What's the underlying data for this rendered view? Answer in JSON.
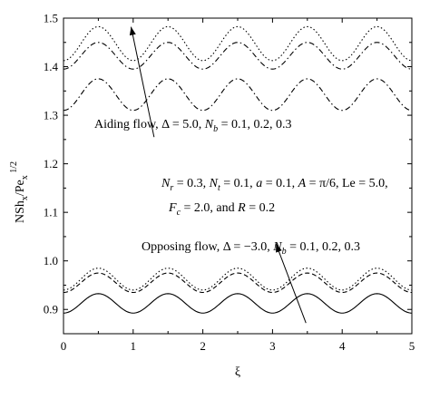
{
  "chart_data": {
    "type": "line",
    "xlabel": "ξ",
    "ylabel": "NSh_x/Pe_x^1/2",
    "xlim": [
      0,
      5
    ],
    "ylim": [
      0.85,
      1.5
    ],
    "xticks": [
      0,
      1,
      2,
      3,
      4,
      5
    ],
    "yticks": [
      0.9,
      1.0,
      1.1,
      1.2,
      1.3,
      1.4,
      1.5
    ],
    "grid": false,
    "annotations": [
      {
        "id": "aiding",
        "text": "Aiding flow, Δ = 5.0, Nb = 0.1, 0.2, 0.3",
        "arrow_from": [
          1.3,
          1.255
        ],
        "arrow_to": [
          0.97,
          1.482
        ]
      },
      {
        "id": "params-line1",
        "text": "Nr = 0.3, Nt = 0.1, a = 0.1, A = π/6, Le = 5.0,"
      },
      {
        "id": "params-line2",
        "text": "Fc = 2.0, and R = 0.2"
      },
      {
        "id": "opposing",
        "text": "Opposing flow, Δ = −3.0, Nb = 0.1, 0.2, 0.3",
        "arrow_from": [
          3.48,
          0.872
        ],
        "arrow_to": [
          3.05,
          1.035
        ]
      }
    ],
    "series": [
      {
        "group": "aiding",
        "nb": "0.1",
        "style": "dotted",
        "mean": 1.4475,
        "amplitude": 0.035,
        "period": 1,
        "peak_at": 0.5
      },
      {
        "group": "aiding",
        "nb": "0.2",
        "style": "dash-dot",
        "mean": 1.4225,
        "amplitude": 0.0275,
        "period": 1,
        "peak_at": 0.5
      },
      {
        "group": "aiding",
        "nb": "0.3",
        "style": "dash-dot",
        "mean": 1.3425,
        "amplitude": 0.0325,
        "period": 1,
        "peak_at": 0.5
      },
      {
        "group": "opposing",
        "nb": "0.1",
        "style": "dotted",
        "mean": 0.9625,
        "amplitude": 0.0225,
        "period": 1,
        "peak_at": 0.5
      },
      {
        "group": "opposing",
        "nb": "0.2",
        "style": "dashed",
        "mean": 0.955,
        "amplitude": 0.02,
        "period": 1,
        "peak_at": 0.5
      },
      {
        "group": "opposing",
        "nb": "0.3",
        "style": "solid",
        "mean": 0.9125,
        "amplitude": 0.02,
        "period": 1,
        "peak_at": 0.5
      }
    ]
  }
}
